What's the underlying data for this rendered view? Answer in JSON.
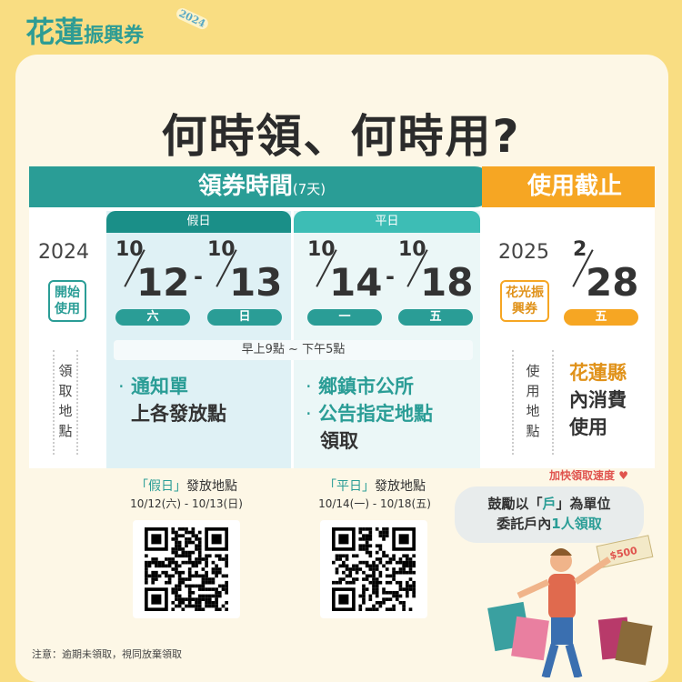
{
  "brand": {
    "name_big": "花蓮",
    "name_small": "振興券",
    "year": "2024"
  },
  "title": "何時領、何時用?",
  "claim_band": {
    "label": "領券時間",
    "days": "(7天)"
  },
  "expiry_band": {
    "label": "使用截止"
  },
  "start": {
    "year": "2024",
    "badge": "開始使用",
    "location_label": "領取地點"
  },
  "holiday": {
    "tab": "假日",
    "start_month": "10",
    "start_day": "12",
    "start_weekday": "六",
    "end_month": "10",
    "end_day": "13",
    "end_weekday": "日",
    "locations": [
      {
        "bullet": "·",
        "teal": "通知單",
        "rest": "上各發放點"
      }
    ]
  },
  "weekday": {
    "tab": "平日",
    "start_month": "10",
    "start_day": "14",
    "start_weekday": "一",
    "end_month": "10",
    "end_day": "18",
    "end_weekday": "五",
    "line1": "鄉鎮市公所",
    "line2": "公告指定地點",
    "line3": "領取"
  },
  "hours": "早上9點  ~  下午5點",
  "dash": "-",
  "expiry": {
    "year": "2025",
    "badge": "花光振興券",
    "month": "2",
    "day": "28",
    "weekday": "五",
    "use_label": "使用地點",
    "use_teal": "花蓮縣",
    "use_rest1": "內消費",
    "use_rest2": "使用"
  },
  "qr": {
    "holiday_title_quote": "「假日」",
    "holiday_title": "發放地點",
    "holiday_dates": "10/12(六) - 10/13(日)",
    "weekday_title_quote": "「平日」",
    "weekday_title": "發放地點",
    "weekday_dates": "10/14(一) - 10/18(五)"
  },
  "tip": {
    "header": "加快領取速度",
    "line1a": "鼓勵以「",
    "line1b": "戶",
    "line1c": "」為單位",
    "line2a": "委託戶內",
    "line2b": "1人領取",
    "money": "$500"
  },
  "note": "注意：逾期未領取，視同放棄領取",
  "colors": {
    "teal": "#2a9d96",
    "teal_light": "#3dbdb5",
    "orange": "#f6a623",
    "background": "#f9dd82",
    "card": "#fdf7e6"
  }
}
